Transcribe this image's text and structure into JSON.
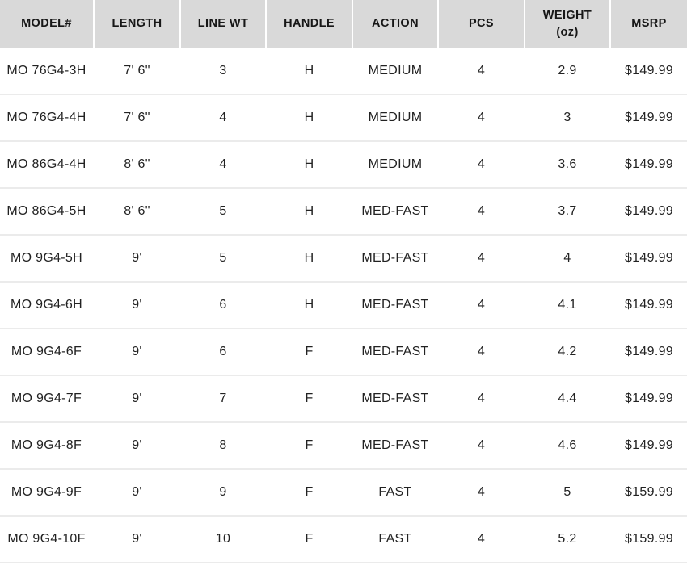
{
  "table": {
    "columns": [
      "MODEL#",
      "LENGTH",
      "LINE WT",
      "HANDLE",
      "ACTION",
      "PCS",
      "WEIGHT (oz)",
      "MSRP"
    ],
    "column_keys": [
      "model",
      "length",
      "line-wt",
      "handle",
      "action",
      "pcs",
      "weight-oz",
      "msrp"
    ],
    "rows": [
      [
        "MO 76G4-3H",
        "7' 6\"",
        "3",
        "H",
        "MEDIUM",
        "4",
        "2.9",
        "$149.99"
      ],
      [
        "MO 76G4-4H",
        "7' 6\"",
        "4",
        "H",
        "MEDIUM",
        "4",
        "3",
        "$149.99"
      ],
      [
        "MO 86G4-4H",
        "8' 6\"",
        "4",
        "H",
        "MEDIUM",
        "4",
        "3.6",
        "$149.99"
      ],
      [
        "MO 86G4-5H",
        "8' 6\"",
        "5",
        "H",
        "MED-FAST",
        "4",
        "3.7",
        "$149.99"
      ],
      [
        "MO 9G4-5H",
        "9'",
        "5",
        "H",
        "MED-FAST",
        "4",
        "4",
        "$149.99"
      ],
      [
        "MO 9G4-6H",
        "9'",
        "6",
        "H",
        "MED-FAST",
        "4",
        "4.1",
        "$149.99"
      ],
      [
        "MO 9G4-6F",
        "9'",
        "6",
        "F",
        "MED-FAST",
        "4",
        "4.2",
        "$149.99"
      ],
      [
        "MO 9G4-7F",
        "9'",
        "7",
        "F",
        "MED-FAST",
        "4",
        "4.4",
        "$149.99"
      ],
      [
        "MO 9G4-8F",
        "9'",
        "8",
        "F",
        "MED-FAST",
        "4",
        "4.6",
        "$149.99"
      ],
      [
        "MO 9G4-9F",
        "9'",
        "9",
        "F",
        "FAST",
        "4",
        "5",
        "$159.99"
      ],
      [
        "MO 9G4-10F",
        "9'",
        "10",
        "F",
        "FAST",
        "4",
        "5.2",
        "$159.99"
      ]
    ],
    "colors": {
      "header_bg": "#d9d9d9",
      "row_bg": "#ffffff",
      "row_separator": "#ebebeb",
      "text": "#1d1d1d"
    }
  }
}
